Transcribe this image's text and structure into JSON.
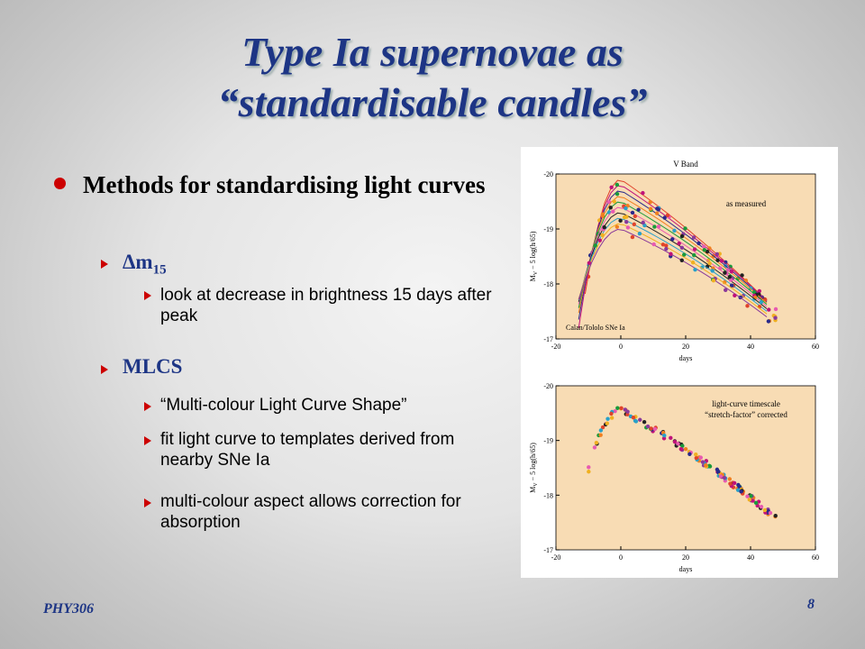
{
  "title": {
    "lines": [
      "Type Ia supernovae as",
      "“standardisable candles”"
    ]
  },
  "bullets": {
    "main": "Methods for standardising light curves",
    "items": [
      {
        "label": {
          "text": "Δm",
          "subscript": "15"
        },
        "subitems": [
          "look at decrease in brightness 15 days after peak"
        ]
      },
      {
        "label": {
          "text": "MLCS"
        },
        "subitems": [
          "“Multi-colour Light Curve Shape”",
          "fit light curve to templates derived from nearby SNe Ia",
          "multi-colour aspect allows correction for absorption"
        ]
      }
    ]
  },
  "figure": {
    "panels": [
      {
        "title": "V Band",
        "labels": [
          "as measured",
          "Calan/Tololo SNe Ia"
        ],
        "ylabel": {
          "text": "M",
          "subscript": "V",
          "rest": " − 5 log(h/65)"
        },
        "xlabel": "days",
        "xlim": [
          -20,
          60
        ],
        "xticks": [
          -20,
          0,
          20,
          40,
          60
        ],
        "ylim": [
          -17,
          -20
        ],
        "yticks": [
          -20,
          -19,
          -18,
          -17
        ]
      },
      {
        "labels": [
          "light-curve timescale",
          "“stretch-factor” corrected"
        ],
        "ylabel": {
          "text": "M",
          "subscript": "V",
          "rest": " − 5 log(h/65)"
        },
        "xlabel": "days",
        "xlim": [
          -20,
          60
        ],
        "xticks": [
          -20,
          0,
          20,
          40,
          60
        ],
        "ylim": [
          -17,
          -20
        ],
        "yticks": [
          -20,
          -19,
          -18,
          -17
        ]
      }
    ]
  },
  "footer": {
    "course": "PHY306",
    "page": "8"
  }
}
